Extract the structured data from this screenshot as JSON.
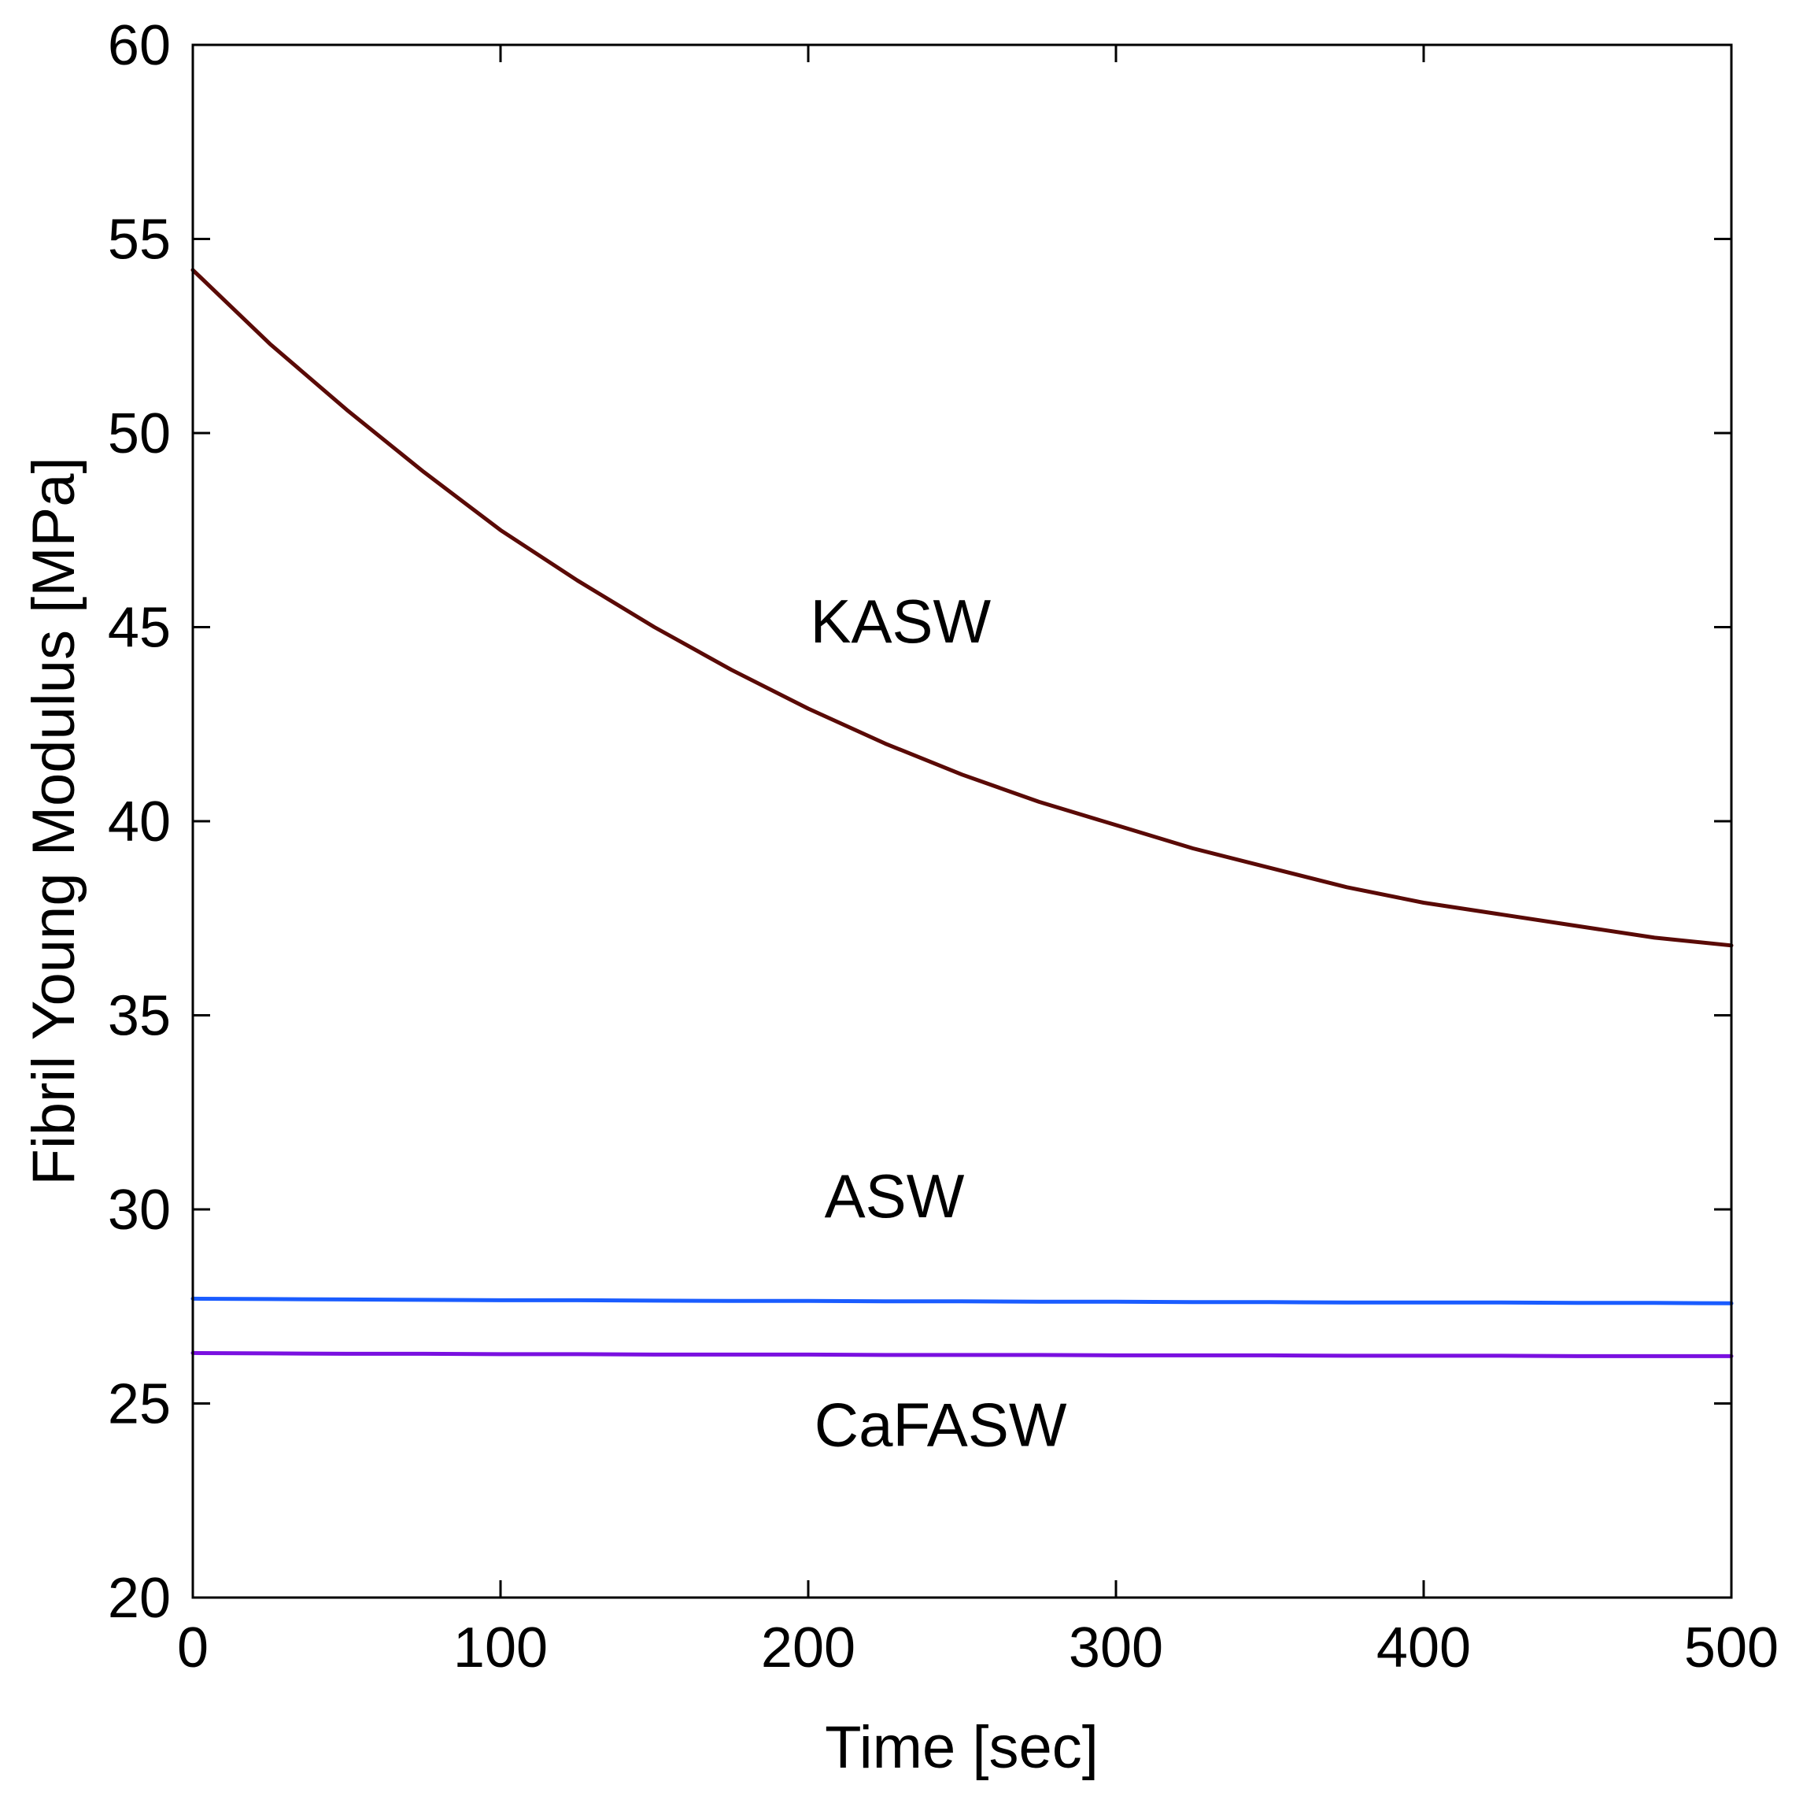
{
  "chart_data": {
    "type": "line",
    "title": "",
    "xlabel": "Time [sec]",
    "ylabel": "Fibril Young Modulus [MPa]",
    "xlim": [
      0,
      500
    ],
    "ylim": [
      20,
      60
    ],
    "xticks": [
      0,
      100,
      200,
      300,
      400,
      500
    ],
    "yticks": [
      20,
      25,
      30,
      35,
      40,
      45,
      50,
      55,
      60
    ],
    "x_tick_labels": [
      "0",
      "100",
      "200",
      "300",
      "400",
      "500"
    ],
    "y_tick_labels": [
      "20",
      "25",
      "30",
      "35",
      "40",
      "45",
      "50",
      "55",
      "60"
    ],
    "grid": false,
    "legend": "none",
    "x": [
      0,
      25,
      50,
      75,
      100,
      125,
      150,
      175,
      200,
      225,
      250,
      275,
      300,
      325,
      350,
      375,
      400,
      425,
      450,
      475,
      500
    ],
    "series": [
      {
        "name": "KASW",
        "color": "#5a0a06",
        "values": [
          54.2,
          52.3,
          50.6,
          49.0,
          47.5,
          46.2,
          45.0,
          43.9,
          42.9,
          42.0,
          41.2,
          40.5,
          39.9,
          39.3,
          38.8,
          38.3,
          37.9,
          37.6,
          37.3,
          37.0,
          36.8
        ]
      },
      {
        "name": "ASW",
        "color": "#1a5cff",
        "values": [
          27.7,
          27.69,
          27.68,
          27.67,
          27.66,
          27.66,
          27.65,
          27.64,
          27.64,
          27.63,
          27.63,
          27.62,
          27.62,
          27.61,
          27.61,
          27.6,
          27.6,
          27.6,
          27.59,
          27.59,
          27.58
        ]
      },
      {
        "name": "CaFASW",
        "color": "#7a10e0",
        "values": [
          26.3,
          26.29,
          26.28,
          26.28,
          26.27,
          26.27,
          26.26,
          26.26,
          26.26,
          26.25,
          26.25,
          26.25,
          26.24,
          26.24,
          26.24,
          26.23,
          26.23,
          26.23,
          26.22,
          26.22,
          26.22
        ]
      }
    ],
    "annotations": [
      {
        "text": "KASW",
        "x": 230,
        "y": 44.6
      },
      {
        "text": "ASW",
        "x": 228,
        "y": 29.8
      },
      {
        "text": "CaFASW",
        "x": 243,
        "y": 23.9
      }
    ]
  }
}
